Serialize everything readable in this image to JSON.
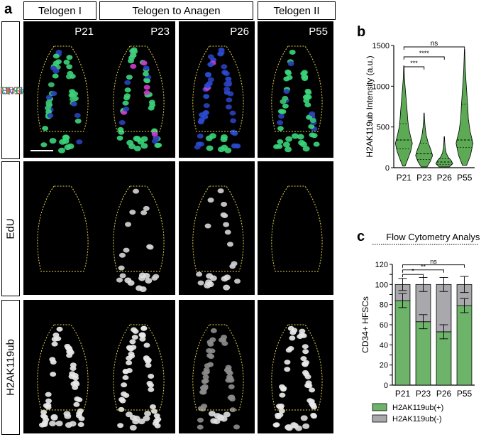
{
  "figure": {
    "panel_a_label": "a",
    "panel_b_label": "b",
    "panel_c_label": "c",
    "headers": [
      "Telogen I",
      "Telogen to Anagen",
      "Telogen II"
    ],
    "row_labels": {
      "merge": [
        {
          "text": "DAPI",
          "color": "#3b5bdb"
        },
        {
          "text": " EdU",
          "color": "#e03131"
        },
        {
          "text": " H2AK119ub",
          "color": "#2f9e44"
        }
      ],
      "edu": "EdU",
      "h2ak": "H2AK119ub"
    },
    "timepoints": [
      "P21",
      "P23",
      "P26",
      "P55"
    ],
    "outline_color": "#e6d44a"
  },
  "chart_data": [
    {
      "type": "violin",
      "panel": "b",
      "categories": [
        "P21",
        "P23",
        "P26",
        "P55"
      ],
      "ylabel": "H2AK119ub Intensity (a.u.)",
      "ylim": [
        0,
        1500
      ],
      "yticks": [
        0,
        500,
        1000,
        1500
      ],
      "violins": [
        {
          "category": "P21",
          "min": 20,
          "max": 1250,
          "q1": 230,
          "median": 340,
          "q3": 540,
          "density": [
            [
              20,
              0.15
            ],
            [
              100,
              0.45
            ],
            [
              200,
              0.8
            ],
            [
              300,
              1.0
            ],
            [
              400,
              0.75
            ],
            [
              500,
              0.55
            ],
            [
              600,
              0.45
            ],
            [
              700,
              0.38
            ],
            [
              800,
              0.3
            ],
            [
              900,
              0.22
            ],
            [
              1000,
              0.14
            ],
            [
              1100,
              0.07
            ],
            [
              1250,
              0.02
            ]
          ]
        },
        {
          "category": "P23",
          "min": 10,
          "max": 670,
          "q1": 100,
          "median": 170,
          "q3": 300,
          "density": [
            [
              10,
              0.35
            ],
            [
              80,
              0.75
            ],
            [
              150,
              1.0
            ],
            [
              220,
              0.8
            ],
            [
              300,
              0.5
            ],
            [
              400,
              0.25
            ],
            [
              500,
              0.12
            ],
            [
              600,
              0.05
            ],
            [
              670,
              0.02
            ]
          ]
        },
        {
          "category": "P26",
          "min": 10,
          "max": 380,
          "q1": 40,
          "median": 70,
          "q3": 110,
          "density": [
            [
              10,
              0.6
            ],
            [
              50,
              1.0
            ],
            [
              90,
              0.8
            ],
            [
              130,
              0.45
            ],
            [
              180,
              0.22
            ],
            [
              250,
              0.1
            ],
            [
              320,
              0.05
            ],
            [
              380,
              0.02
            ]
          ]
        },
        {
          "category": "P55",
          "min": 30,
          "max": 1450,
          "q1": 250,
          "median": 340,
          "q3": 780,
          "density": [
            [
              30,
              0.25
            ],
            [
              150,
              0.7
            ],
            [
              300,
              1.0
            ],
            [
              450,
              0.65
            ],
            [
              600,
              0.45
            ],
            [
              750,
              0.38
            ],
            [
              900,
              0.28
            ],
            [
              1050,
              0.18
            ],
            [
              1200,
              0.1
            ],
            [
              1350,
              0.05
            ],
            [
              1450,
              0.02
            ]
          ]
        }
      ],
      "comparisons": [
        {
          "from": "P21",
          "to": "P23",
          "label": "***"
        },
        {
          "from": "P21",
          "to": "P26",
          "label": "****"
        },
        {
          "from": "P21",
          "to": "P55",
          "label": "ns"
        }
      ],
      "fill_color": "#5daa55"
    },
    {
      "type": "stacked_bar",
      "panel": "c",
      "title": "Flow Cytometry Analysis",
      "categories": [
        "P21",
        "P23",
        "P26",
        "P55"
      ],
      "ylabel": "CD34+ HFSCs",
      "ylim": [
        0,
        120
      ],
      "yticks": [
        0,
        10,
        20,
        30,
        40,
        50,
        60,
        70,
        80,
        90,
        100,
        110,
        120
      ],
      "series": [
        {
          "name": "H2AK119ub(+)",
          "color": "#6db46a",
          "values": [
            84,
            63,
            53,
            79
          ],
          "err": [
            7,
            7,
            7,
            7
          ]
        },
        {
          "name": "H2AK119ub(-)",
          "color": "#a9a9ad",
          "values": [
            16,
            37,
            47,
            21
          ],
          "err": [
            6,
            7,
            7,
            8
          ]
        }
      ],
      "comparisons": [
        {
          "from": "P21",
          "to": "P23",
          "label": "*"
        },
        {
          "from": "P21",
          "to": "P26",
          "label": "**"
        },
        {
          "from": "P21",
          "to": "P55",
          "label": "ns"
        }
      ],
      "legend_position": "bottom"
    }
  ]
}
